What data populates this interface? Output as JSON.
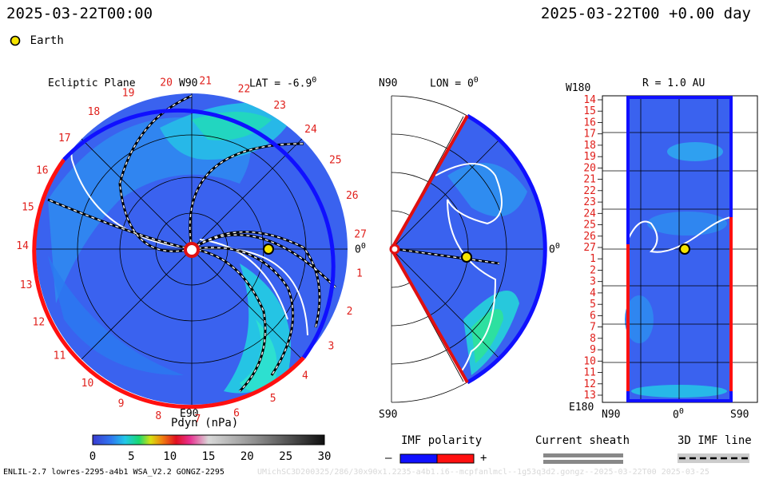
{
  "header": {
    "timestamp": "2025-03-22T00:00",
    "date_offset": "2025-03-22T00 +0.00 day"
  },
  "legend": {
    "earth_label": "Earth",
    "earth_color": "#f5e400"
  },
  "panels": {
    "ecliptic": {
      "title": "Ecliptic Plane",
      "top_label": "W90",
      "bottom_label": "E90",
      "right_label": "0",
      "lat_label": "LAT = -6.9",
      "lat_sup": "0",
      "carrington_ticks": [
        "1",
        "2",
        "3",
        "4",
        "5",
        "6",
        "7",
        "8",
        "9",
        "10",
        "11",
        "12",
        "13",
        "14",
        "15",
        "16",
        "17",
        "18",
        "19",
        "20",
        "21",
        "22",
        "23",
        "24",
        "25",
        "26",
        "27"
      ],
      "tick_color": "#e0201c"
    },
    "meridional": {
      "top_label": "N90",
      "bottom_label": "S90",
      "lon_label": "LON = 0",
      "lon_sup": "0",
      "right_label": "0",
      "right_sup": "0"
    },
    "radial": {
      "title": "R = 1.0 AU",
      "top_left": "W180",
      "bottom_left": "E180",
      "bottom_left_axis": "N90",
      "bottom_mid_axis": "0",
      "bottom_mid_sup": "0",
      "bottom_right_axis": "S90",
      "rows": [
        "14",
        "15",
        "16",
        "17",
        "18",
        "19",
        "20",
        "21",
        "22",
        "23",
        "24",
        "25",
        "26",
        "27",
        "1",
        "2",
        "3",
        "4",
        "5",
        "6",
        "7",
        "8",
        "9",
        "10",
        "11",
        "12",
        "13"
      ]
    }
  },
  "colorbar": {
    "label": "Pdyn (nPa)",
    "ticks": [
      "0",
      "5",
      "10",
      "15",
      "20",
      "25",
      "30"
    ],
    "min": 0,
    "max": 30
  },
  "imf": {
    "title": "IMF polarity",
    "minus": "–",
    "plus": "+",
    "neg_color": "#1010ff",
    "pos_color": "#ff1010"
  },
  "sheath": {
    "title": "Current sheath"
  },
  "imf_line": {
    "title": "3D IMF line"
  },
  "footer": {
    "model_info": "ENLIL-2.7 lowres-2295-a4b1 WSA_V2.2 GONGZ-2295",
    "run_info": "UMichSC3D200325/286/30x90x1.2235-a4b1.i6--mcpfanlmcl--1g53q3d2.gongz--2025-03-22T00   2025-03-25"
  }
}
